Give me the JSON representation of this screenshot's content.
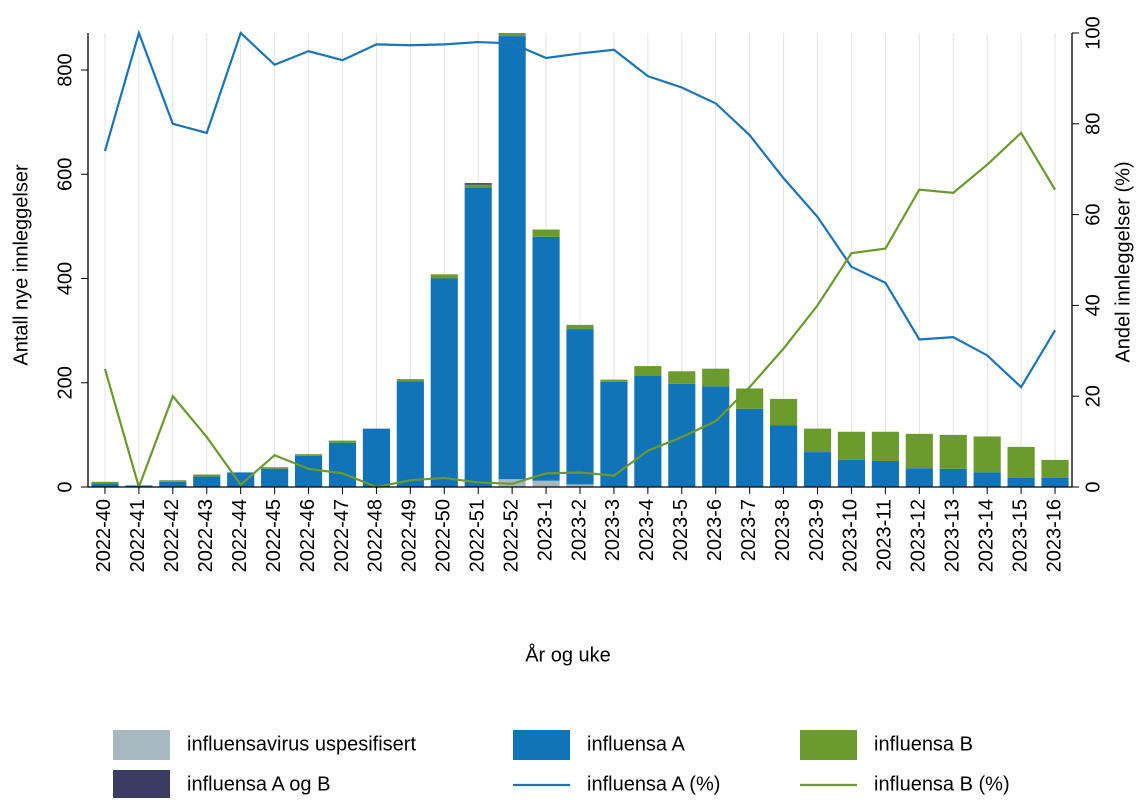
{
  "chart_data": {
    "type": "bar",
    "stacked": true,
    "xlabel": "År og uke",
    "ylabel": "Antall nye innleggelser",
    "y2label": "Andel innleggelser (%)",
    "categories": [
      "2022-40",
      "2022-41",
      "2022-42",
      "2022-43",
      "2022-44",
      "2022-45",
      "2022-46",
      "2022-47",
      "2022-48",
      "2022-49",
      "2022-50",
      "2022-51",
      "2022-52",
      "2023-1",
      "2023-2",
      "2023-3",
      "2023-4",
      "2023-5",
      "2023-6",
      "2023-7",
      "2023-8",
      "2023-9",
      "2023-10",
      "2023-11",
      "2023-12",
      "2023-13",
      "2023-14",
      "2023-15",
      "2023-16"
    ],
    "series": [
      {
        "name": "influensavirus uspesifisert",
        "type": "bar",
        "color": "#a7b8c1",
        "values": [
          0,
          0,
          0,
          0,
          0,
          0,
          0,
          0,
          0,
          0,
          0,
          0,
          15,
          12,
          5,
          0,
          0,
          0,
          0,
          0,
          0,
          0,
          0,
          0,
          0,
          0,
          0,
          0,
          0
        ]
      },
      {
        "name": "influensa A",
        "type": "bar",
        "color": "#1173b8",
        "values": [
          7,
          3,
          10,
          20,
          28,
          35,
          60,
          85,
          112,
          203,
          400,
          575,
          850,
          468,
          298,
          202,
          213,
          198,
          193,
          150,
          118,
          67,
          52,
          50,
          36,
          35,
          28,
          18,
          18
        ]
      },
      {
        "name": "influensa B",
        "type": "bar",
        "color": "#6b9a2d",
        "values": [
          3,
          0,
          3,
          4,
          0,
          3,
          3,
          4,
          0,
          4,
          8,
          5,
          6,
          14,
          8,
          4,
          19,
          24,
          34,
          39,
          51,
          45,
          54,
          56,
          66,
          65,
          69,
          59,
          34
        ]
      },
      {
        "name": "influensa A og B",
        "type": "bar",
        "color": "#3a3c63",
        "values": [
          0,
          0,
          0,
          0,
          0,
          0,
          0,
          0,
          0,
          0,
          0,
          3,
          0,
          0,
          0,
          0,
          0,
          0,
          0,
          0,
          0,
          0,
          0,
          0,
          0,
          0,
          0,
          0,
          0
        ]
      },
      {
        "name": "influensa A (%)",
        "type": "line",
        "axis": "y2",
        "color": "#1a74b8",
        "values": [
          74,
          100,
          80,
          78,
          100,
          93,
          96,
          94,
          97.5,
          97.3,
          97.5,
          98,
          97.7,
          94.5,
          95.5,
          96.3,
          90.5,
          88,
          84.5,
          77.5,
          68,
          59.5,
          48.5,
          45,
          32.5,
          33,
          29,
          22,
          34.5
        ]
      },
      {
        "name": "influensa B (%)",
        "type": "line",
        "axis": "y2",
        "color": "#6a9a2a",
        "values": [
          26,
          0,
          20,
          11,
          0.5,
          7,
          4,
          3,
          0,
          1.5,
          2,
          1,
          0.7,
          3,
          3.2,
          2.5,
          8,
          11,
          14.5,
          22,
          30.5,
          40,
          51.5,
          52.5,
          65.5,
          64.8,
          71,
          78,
          65.5
        ]
      }
    ],
    "ylim": [
      0,
      871
    ],
    "yticks": [
      0,
      200,
      400,
      600,
      800
    ],
    "y2lim": [
      0,
      100
    ],
    "y2ticks": [
      0,
      20,
      40,
      60,
      80,
      100
    ],
    "grid": "x",
    "legend": "bottom"
  }
}
